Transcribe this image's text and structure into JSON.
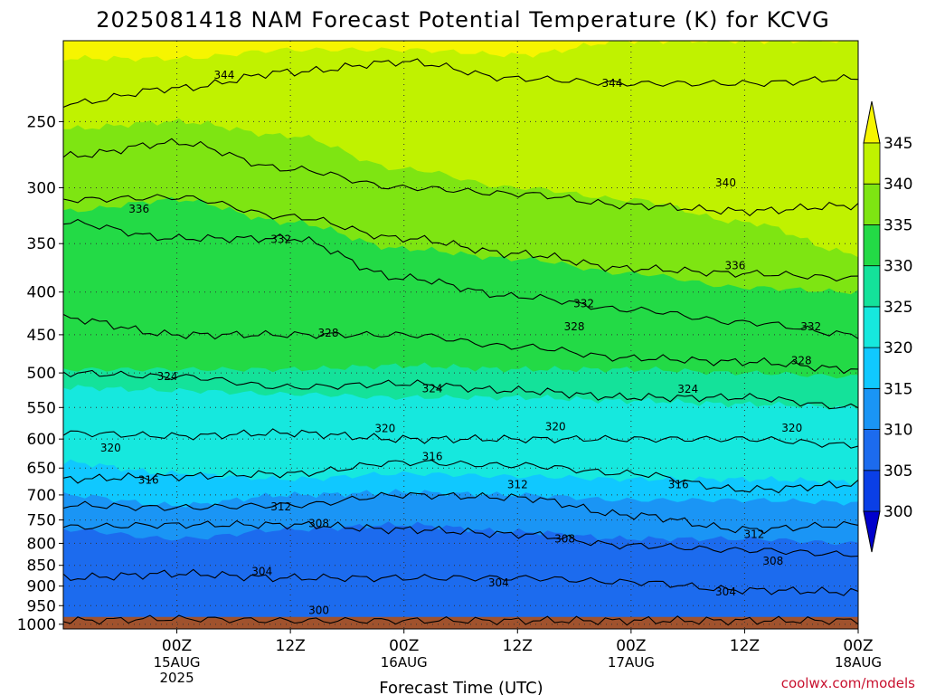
{
  "chart_data": {
    "type": "area",
    "title": "2025081418 NAM Forecast Potential Temperature (K) for KCVG",
    "xlabel": "Forecast Time (UTC)",
    "ylabel": "",
    "credit": "coolwx.com/models",
    "y_axis": {
      "scale": "log",
      "ticks": [
        250,
        300,
        350,
        400,
        450,
        500,
        550,
        600,
        650,
        700,
        750,
        800,
        850,
        900,
        950,
        1000
      ],
      "tick_labels": [
        "250",
        "300",
        "350",
        "400",
        "450",
        "500",
        "550",
        "600",
        "650",
        "700",
        "750",
        "800",
        "850",
        "900",
        "950",
        "1000"
      ],
      "range": [
        200,
        1013
      ],
      "inverted": true
    },
    "x_axis": {
      "range_hours": [
        -6,
        78
      ],
      "ticks": [
        {
          "hour": 6,
          "label": "00Z",
          "date": "15AUG",
          "year": "2025"
        },
        {
          "hour": 18,
          "label": "12Z",
          "date": "",
          "year": ""
        },
        {
          "hour": 30,
          "label": "00Z",
          "date": "16AUG",
          "year": ""
        },
        {
          "hour": 42,
          "label": "12Z",
          "date": "",
          "year": ""
        },
        {
          "hour": 54,
          "label": "00Z",
          "date": "17AUG",
          "year": ""
        },
        {
          "hour": 66,
          "label": "12Z",
          "date": "",
          "year": ""
        },
        {
          "hour": 78,
          "label": "00Z",
          "date": "18AUG",
          "year": ""
        }
      ]
    },
    "grid": true,
    "colorbar": {
      "levels": [
        "300",
        "305",
        "310",
        "315",
        "320",
        "325",
        "330",
        "335",
        "340",
        "345"
      ],
      "colors": [
        "#0000cc",
        "#0a3fe6",
        "#1c6bee",
        "#1a95f5",
        "#10c8ff",
        "#16e8de",
        "#14e29a",
        "#23da46",
        "#7ee512",
        "#c0f200",
        "#f6f500"
      ],
      "extend": "both"
    },
    "bands": [
      {
        "theta": 345,
        "pressures": [
          210,
          210,
          205,
          205,
          208,
          200,
          200,
          200
        ]
      },
      {
        "theta": 340,
        "pressures": [
          255,
          250,
          260,
          285,
          300,
          310,
          330,
          360
        ]
      },
      {
        "theta": 335,
        "pressures": [
          320,
          310,
          330,
          355,
          365,
          380,
          395,
          400
        ]
      },
      {
        "theta": 330,
        "pressures": [
          495,
          495,
          495,
          490,
          495,
          495,
          500,
          505
        ]
      },
      {
        "theta": 325,
        "pressures": [
          520,
          525,
          530,
          535,
          535,
          540,
          545,
          550
        ]
      },
      {
        "theta": 320,
        "pressures": [
          640,
          660,
          670,
          660,
          665,
          670,
          670,
          675
        ]
      },
      {
        "theta": 315,
        "pressures": [
          700,
          720,
          700,
          695,
          700,
          710,
          710,
          715
        ]
      },
      {
        "theta": 310,
        "pressures": [
          770,
          790,
          770,
          760,
          775,
          790,
          790,
          800
        ]
      },
      {
        "theta": 305,
        "pressures": [
          990,
          990,
          990,
          990,
          990,
          990,
          990,
          990
        ]
      }
    ],
    "band_hours": [
      -6,
      6,
      18,
      30,
      42,
      54,
      66,
      78
    ],
    "contour_hours": [
      -6,
      6,
      18,
      30,
      42,
      54,
      66,
      78
    ],
    "contours": [
      {
        "theta": 344,
        "pressures": [
          238,
          228,
          218,
          212,
          222,
          225,
          225,
          222
        ]
      },
      {
        "theta": 340,
        "pressures": [
          275,
          265,
          285,
          300,
          305,
          315,
          320,
          315
        ]
      },
      {
        "theta": 336,
        "pressures": [
          310,
          308,
          325,
          345,
          360,
          375,
          380,
          385
        ]
      },
      {
        "theta": 332,
        "pressures": [
          330,
          345,
          345,
          385,
          405,
          420,
          435,
          450
        ]
      },
      {
        "theta": 328,
        "pressures": [
          430,
          450,
          450,
          450,
          465,
          480,
          485,
          495
        ]
      },
      {
        "theta": 324,
        "pressures": [
          500,
          505,
          520,
          515,
          525,
          535,
          535,
          550
        ]
      },
      {
        "theta": 320,
        "pressures": [
          590,
          595,
          590,
          600,
          600,
          600,
          600,
          610
        ]
      },
      {
        "theta": 316,
        "pressures": [
          670,
          665,
          660,
          640,
          645,
          660,
          690,
          680
        ]
      },
      {
        "theta": 312,
        "pressures": [
          720,
          725,
          720,
          700,
          705,
          740,
          770,
          760
        ]
      },
      {
        "theta": 308,
        "pressures": [
          765,
          760,
          760,
          770,
          780,
          805,
          815,
          825
        ]
      },
      {
        "theta": 304,
        "pressures": [
          880,
          870,
          880,
          880,
          880,
          890,
          910,
          915
        ]
      },
      {
        "theta": 300,
        "pressures": [
          990,
          985,
          990,
          990,
          990,
          990,
          990,
          990
        ]
      }
    ],
    "contour_labels": [
      {
        "theta": "344",
        "hour": 11,
        "pressure": 220
      },
      {
        "theta": "344",
        "hour": 52,
        "pressure": 225
      },
      {
        "theta": "340",
        "hour": 64,
        "pressure": 296
      },
      {
        "theta": "336",
        "hour": 2,
        "pressure": 318
      },
      {
        "theta": "336",
        "hour": 65,
        "pressure": 372
      },
      {
        "theta": "332",
        "hour": 17,
        "pressure": 346
      },
      {
        "theta": "332",
        "hour": 49,
        "pressure": 413
      },
      {
        "theta": "332",
        "hour": 73,
        "pressure": 440
      },
      {
        "theta": "328",
        "hour": 22,
        "pressure": 448
      },
      {
        "theta": "328",
        "hour": 48,
        "pressure": 440
      },
      {
        "theta": "328",
        "hour": 72,
        "pressure": 483
      },
      {
        "theta": "324",
        "hour": 5,
        "pressure": 505
      },
      {
        "theta": "324",
        "hour": 33,
        "pressure": 522
      },
      {
        "theta": "324",
        "hour": 60,
        "pressure": 523
      },
      {
        "theta": "320",
        "hour": 28,
        "pressure": 583
      },
      {
        "theta": "320",
        "hour": 46,
        "pressure": 580
      },
      {
        "theta": "320",
        "hour": 71,
        "pressure": 582
      },
      {
        "theta": "320",
        "hour": -1,
        "pressure": 615
      },
      {
        "theta": "316",
        "hour": 3,
        "pressure": 672
      },
      {
        "theta": "316",
        "hour": 33,
        "pressure": 630
      },
      {
        "theta": "316",
        "hour": 59,
        "pressure": 680
      },
      {
        "theta": "312",
        "hour": 17,
        "pressure": 723
      },
      {
        "theta": "312",
        "hour": 42,
        "pressure": 680
      },
      {
        "theta": "312",
        "hour": 67,
        "pressure": 780
      },
      {
        "theta": "308",
        "hour": 21,
        "pressure": 757
      },
      {
        "theta": "308",
        "hour": 47,
        "pressure": 790
      },
      {
        "theta": "308",
        "hour": 69,
        "pressure": 840
      },
      {
        "theta": "304",
        "hour": 15,
        "pressure": 865
      },
      {
        "theta": "304",
        "hour": 40,
        "pressure": 892
      },
      {
        "theta": "304",
        "hour": 64,
        "pressure": 915
      },
      {
        "theta": "300",
        "hour": 21,
        "pressure": 962
      }
    ],
    "ground": {
      "pressure": 980,
      "color": "#a0522d"
    }
  }
}
